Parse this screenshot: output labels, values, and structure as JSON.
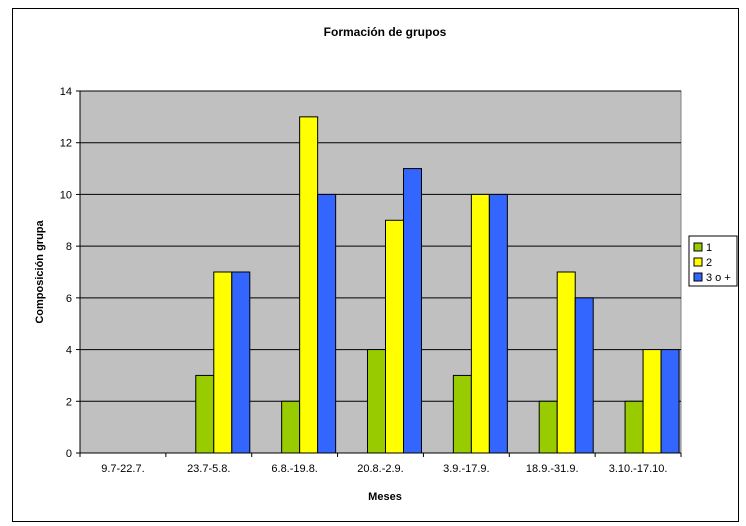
{
  "chart_data": {
    "type": "bar",
    "title": "Formación de grupos",
    "xlabel": "Meses",
    "ylabel": "Composición grupa",
    "categories": [
      "9.7-22.7.",
      "23.7-5.8.",
      "6.8.-19.8.",
      "20.8.-2.9.",
      "3.9.-17.9.",
      "18.9.-31.9.",
      "3.10.-17.10."
    ],
    "series": [
      {
        "name": "1",
        "color": "#99cc00",
        "values": [
          0,
          3,
          2,
          4,
          3,
          2,
          2
        ]
      },
      {
        "name": "2",
        "color": "#ffff00",
        "values": [
          0,
          7,
          13,
          9,
          10,
          7,
          4
        ]
      },
      {
        "name": "3 o +",
        "color": "#3366ff",
        "values": [
          0,
          7,
          10,
          11,
          10,
          6,
          4
        ]
      }
    ],
    "ylim": [
      0,
      14
    ],
    "yticks": [
      0,
      2,
      4,
      6,
      8,
      10,
      12,
      14
    ],
    "grid": true,
    "plot_background": "#c0c0c0",
    "legend_position": "right"
  }
}
